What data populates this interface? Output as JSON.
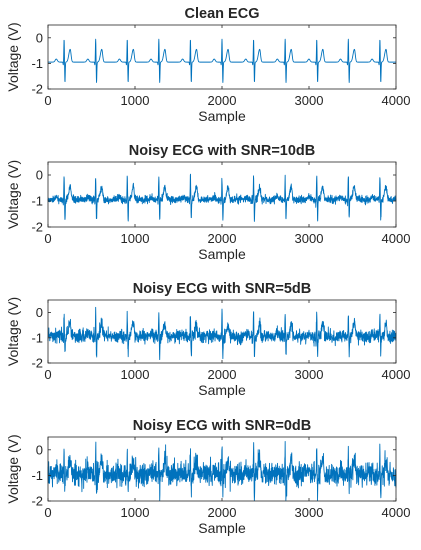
{
  "chart_data": [
    {
      "type": "line",
      "title": "Clean ECG",
      "xlabel": "Sample",
      "ylabel": "Voltage (V)",
      "xlim": [
        0,
        4000
      ],
      "ylim": [
        -2,
        0.5
      ],
      "xticks": [
        "0",
        "1000",
        "2000",
        "3000",
        "4000"
      ],
      "yticks": [
        "0",
        "-1",
        "-2"
      ],
      "grid": false,
      "color": "#0072BD",
      "noise_sd": 0.0,
      "signal": {
        "baseline": -0.95,
        "beat_interval": 363,
        "first_r_peak": 185,
        "r_peak": -0.05,
        "s_trough": -1.75,
        "t_wave": -0.45
      },
      "series": [
        {
          "beats_at": [
            185,
            548,
            911,
            1274,
            1637,
            2000,
            2363,
            2726,
            3089,
            3452,
            3815
          ]
        }
      ]
    },
    {
      "type": "line",
      "title": "Noisy ECG with SNR=10dB",
      "xlabel": "Sample",
      "ylabel": "Voltage (V)",
      "xlim": [
        0,
        4000
      ],
      "ylim": [
        -2,
        0.5
      ],
      "xticks": [
        "0",
        "1000",
        "2000",
        "3000",
        "4000"
      ],
      "yticks": [
        "0",
        "-1",
        "-2"
      ],
      "grid": false,
      "color": "#0072BD",
      "noise_sd": 0.07,
      "signal": {
        "baseline": -0.95,
        "beat_interval": 363,
        "first_r_peak": 185,
        "r_peak": -0.05,
        "s_trough": -1.75,
        "t_wave": -0.45
      },
      "series": [
        {
          "beats_at": [
            185,
            548,
            911,
            1274,
            1637,
            2000,
            2363,
            2726,
            3089,
            3452,
            3815
          ]
        }
      ]
    },
    {
      "type": "line",
      "title": "Noisy ECG with SNR=5dB",
      "xlabel": "Sample",
      "ylabel": "Voltage (V)",
      "xlim": [
        0,
        4000
      ],
      "ylim": [
        -2,
        0.5
      ],
      "xticks": [
        "0",
        "1000",
        "2000",
        "3000",
        "4000"
      ],
      "yticks": [
        "0",
        "-1",
        "-2"
      ],
      "grid": false,
      "color": "#0072BD",
      "noise_sd": 0.13,
      "signal": {
        "baseline": -0.95,
        "beat_interval": 363,
        "first_r_peak": 185,
        "r_peak": -0.05,
        "s_trough": -1.75,
        "t_wave": -0.45
      },
      "series": [
        {
          "beats_at": [
            185,
            548,
            911,
            1274,
            1637,
            2000,
            2363,
            2726,
            3089,
            3452,
            3815
          ]
        }
      ]
    },
    {
      "type": "line",
      "title": "Noisy ECG with SNR=0dB",
      "xlabel": "Sample",
      "ylabel": "Voltage (V)",
      "xlim": [
        0,
        4000
      ],
      "ylim": [
        -2,
        0.5
      ],
      "xticks": [
        "0",
        "1000",
        "2000",
        "3000",
        "4000"
      ],
      "yticks": [
        "0",
        "-1",
        "-2"
      ],
      "grid": false,
      "color": "#0072BD",
      "noise_sd": 0.22,
      "signal": {
        "baseline": -0.95,
        "beat_interval": 363,
        "first_r_peak": 185,
        "r_peak": -0.05,
        "s_trough": -1.75,
        "t_wave": -0.45
      },
      "series": [
        {
          "beats_at": [
            185,
            548,
            911,
            1274,
            1637,
            2000,
            2363,
            2726,
            3089,
            3452,
            3815
          ]
        }
      ]
    }
  ]
}
